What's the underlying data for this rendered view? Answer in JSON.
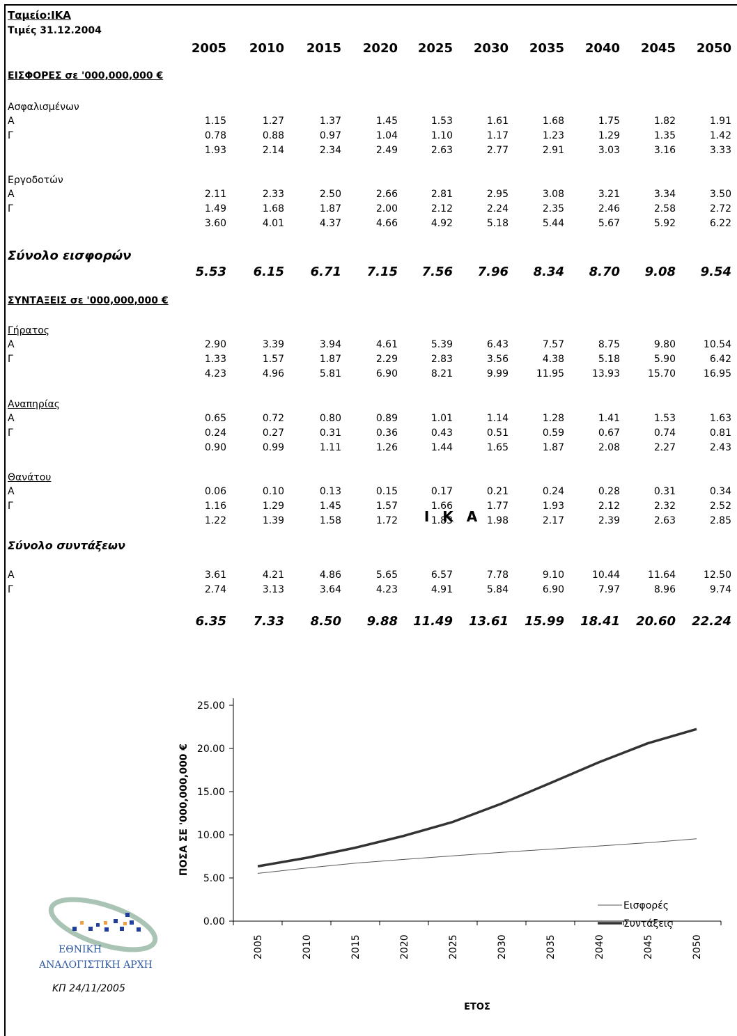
{
  "header": {
    "title": "Ταμείο:ΙΚΑ",
    "subtitle": "Τιμές 31.12.2004"
  },
  "years": [
    "2005",
    "2010",
    "2015",
    "2020",
    "2025",
    "2030",
    "2035",
    "2040",
    "2045",
    "2050"
  ],
  "contrib": {
    "section_title": "ΕΙΣΦΟΡΕΣ σε '000,000,000 €",
    "insured": {
      "label": "Ασφαλισμένων",
      "rows": [
        {
          "label": "Α",
          "values": [
            "1.15",
            "1.27",
            "1.37",
            "1.45",
            "1.53",
            "1.61",
            "1.68",
            "1.75",
            "1.82",
            "1.91"
          ]
        },
        {
          "label": "Γ",
          "values": [
            "0.78",
            "0.88",
            "0.97",
            "1.04",
            "1.10",
            "1.17",
            "1.23",
            "1.29",
            "1.35",
            "1.42"
          ]
        },
        {
          "label": "",
          "values": [
            "1.93",
            "2.14",
            "2.34",
            "2.49",
            "2.63",
            "2.77",
            "2.91",
            "3.03",
            "3.16",
            "3.33"
          ]
        }
      ]
    },
    "employers": {
      "label": "Εργοδοτών",
      "rows": [
        {
          "label": "Α",
          "values": [
            "2.11",
            "2.33",
            "2.50",
            "2.66",
            "2.81",
            "2.95",
            "3.08",
            "3.21",
            "3.34",
            "3.50"
          ]
        },
        {
          "label": "Γ",
          "values": [
            "1.49",
            "1.68",
            "1.87",
            "2.00",
            "2.12",
            "2.24",
            "2.35",
            "2.46",
            "2.58",
            "2.72"
          ]
        },
        {
          "label": "",
          "values": [
            "3.60",
            "4.01",
            "4.37",
            "4.66",
            "4.92",
            "5.18",
            "5.44",
            "5.67",
            "5.92",
            "6.22"
          ]
        }
      ]
    },
    "total_label": "Σύνολο εισφορών",
    "total_values": [
      "5.53",
      "6.15",
      "6.71",
      "7.15",
      "7.56",
      "7.96",
      "8.34",
      "8.70",
      "9.08",
      "9.54"
    ]
  },
  "pensions": {
    "section_title": "ΣΥΝΤΑΞΕΙΣ σε '000,000,000 €",
    "old_age": {
      "label": "Γήρατος",
      "rows": [
        {
          "label": "Α",
          "values": [
            "2.90",
            "3.39",
            "3.94",
            "4.61",
            "5.39",
            "6.43",
            "7.57",
            "8.75",
            "9.80",
            "10.54"
          ]
        },
        {
          "label": "Γ",
          "values": [
            "1.33",
            "1.57",
            "1.87",
            "2.29",
            "2.83",
            "3.56",
            "4.38",
            "5.18",
            "5.90",
            "6.42"
          ]
        },
        {
          "label": "",
          "values": [
            "4.23",
            "4.96",
            "5.81",
            "6.90",
            "8.21",
            "9.99",
            "11.95",
            "13.93",
            "15.70",
            "16.95"
          ]
        }
      ]
    },
    "disability": {
      "label": "Αναπηρίας",
      "rows": [
        {
          "label": "Α",
          "values": [
            "0.65",
            "0.72",
            "0.80",
            "0.89",
            "1.01",
            "1.14",
            "1.28",
            "1.41",
            "1.53",
            "1.63"
          ]
        },
        {
          "label": "Γ",
          "values": [
            "0.24",
            "0.27",
            "0.31",
            "0.36",
            "0.43",
            "0.51",
            "0.59",
            "0.67",
            "0.74",
            "0.81"
          ]
        },
        {
          "label": "",
          "values": [
            "0.90",
            "0.99",
            "1.11",
            "1.26",
            "1.44",
            "1.65",
            "1.87",
            "2.08",
            "2.27",
            "2.43"
          ]
        }
      ]
    },
    "death": {
      "label": "Θανάτου",
      "rows": [
        {
          "label": "Α",
          "values": [
            "0.06",
            "0.10",
            "0.13",
            "0.15",
            "0.17",
            "0.21",
            "0.24",
            "0.28",
            "0.31",
            "0.34"
          ]
        },
        {
          "label": "Γ",
          "values": [
            "1.16",
            "1.29",
            "1.45",
            "1.57",
            "1.66",
            "1.77",
            "1.93",
            "2.12",
            "2.32",
            "2.52"
          ]
        },
        {
          "label": "",
          "values": [
            "1.22",
            "1.39",
            "1.58",
            "1.72",
            "1.83",
            "1.98",
            "2.17",
            "2.39",
            "2.63",
            "2.85"
          ]
        }
      ]
    },
    "total_label": "Σύνολο συντάξεων",
    "total_rows": [
      {
        "label": "Α",
        "values": [
          "3.61",
          "4.21",
          "4.86",
          "5.65",
          "6.57",
          "7.78",
          "9.10",
          "10.44",
          "11.64",
          "12.50"
        ]
      },
      {
        "label": "Γ",
        "values": [
          "2.74",
          "3.13",
          "3.64",
          "4.23",
          "4.91",
          "5.84",
          "6.90",
          "7.97",
          "8.96",
          "9.74"
        ]
      }
    ],
    "total_values": [
      "6.35",
      "7.33",
      "8.50",
      "9.88",
      "11.49",
      "13.61",
      "15.99",
      "18.41",
      "20.60",
      "22.24"
    ]
  },
  "chart_data": {
    "type": "line",
    "title": "Ι Κ Α",
    "xlabel": "ΕΤΟΣ",
    "ylabel": "ΠΟΣΑ ΣΕ '000,000,000 €",
    "categories": [
      "2005",
      "2010",
      "2015",
      "2020",
      "2025",
      "2030",
      "2035",
      "2040",
      "2045",
      "2050"
    ],
    "ylim": [
      0,
      25
    ],
    "yticks": [
      "0.00",
      "5.00",
      "10.00",
      "15.00",
      "20.00",
      "25.00"
    ],
    "series": [
      {
        "name": "Εισφορές",
        "values": [
          5.53,
          6.15,
          6.71,
          7.15,
          7.56,
          7.96,
          8.34,
          8.7,
          9.08,
          9.54
        ]
      },
      {
        "name": "Συντάξεις",
        "values": [
          6.35,
          7.33,
          8.5,
          9.88,
          11.49,
          13.61,
          15.99,
          18.41,
          20.6,
          22.24
        ]
      }
    ],
    "legend": "bottom-right",
    "grid": false
  },
  "footer": {
    "logo_line1": "ΕΘΝΙΚΗ",
    "logo_line2": "ΑΝΑΛΟΓΙΣΤΙΚΗ ΑΡΧΗ",
    "signature": "ΚΠ 24/11/2005",
    "logo_colors": {
      "blue": "#1f3f9a",
      "orange": "#f0a040",
      "ring": "#9bb7a0"
    }
  }
}
